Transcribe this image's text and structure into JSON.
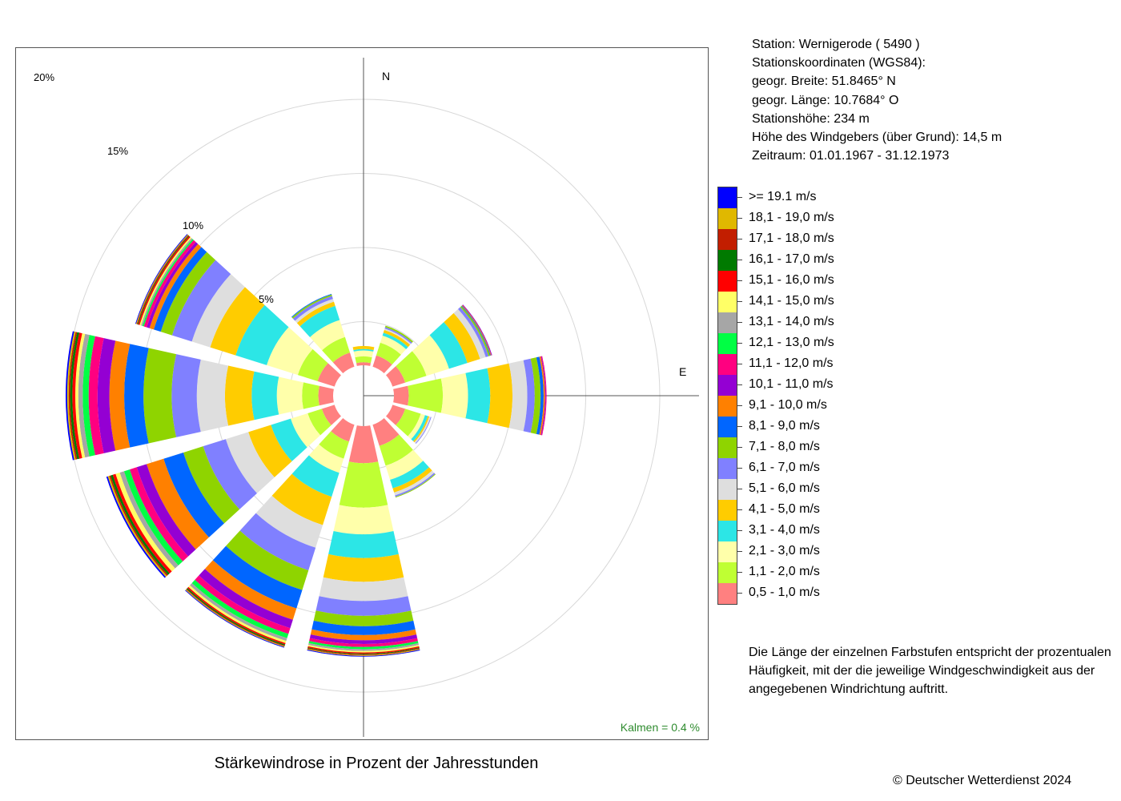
{
  "station": {
    "line1": "Station:  Wernigerode  ( 5490 )",
    "line2": "Stationskoordinaten (WGS84):",
    "line3": "geogr. Breite: 51.8465° N",
    "line4": "geogr. Länge: 10.7684° O",
    "line5": "Stationshöhe: 234 m",
    "line6": "Höhe des Windgebers (über Grund): 14,5 m",
    "line7": "Zeitraum: 01.01.1967 - 31.12.1973"
  },
  "legend": [
    {
      "label": ">= 19.1 m/s",
      "color": "#0000ff"
    },
    {
      "label": "18,1 - 19,0 m/s",
      "color": "#e0b800"
    },
    {
      "label": "17,1 - 18,0 m/s",
      "color": "#c21e00"
    },
    {
      "label": "16,1 - 17,0 m/s",
      "color": "#007a00"
    },
    {
      "label": "15,1 - 16,0 m/s",
      "color": "#ff0000"
    },
    {
      "label": "14,1 - 15,0 m/s",
      "color": "#ffff66"
    },
    {
      "label": "13,1 - 14,0 m/s",
      "color": "#a6a6a6"
    },
    {
      "label": "12,1 - 13,0 m/s",
      "color": "#00ff44"
    },
    {
      "label": "11,1 - 12,0 m/s",
      "color": "#ff0080"
    },
    {
      "label": "10,1 - 11,0 m/s",
      "color": "#9400d3"
    },
    {
      "label": "9,1 - 10,0 m/s",
      "color": "#ff8000"
    },
    {
      "label": "8,1 - 9,0 m/s",
      "color": "#0066ff"
    },
    {
      "label": "7,1 - 8,0 m/s",
      "color": "#8fd400"
    },
    {
      "label": "6,1 - 7,0 m/s",
      "color": "#8080ff"
    },
    {
      "label": "5,1 - 6,0 m/s",
      "color": "#dedede"
    },
    {
      "label": "4,1 - 5,0 m/s",
      "color": "#ffcc00"
    },
    {
      "label": "3,1 - 4,0 m/s",
      "color": "#2ce6e6"
    },
    {
      "label": "2,1 - 3,0 m/s",
      "color": "#ffffaa"
    },
    {
      "label": "1,1 - 2,0 m/s",
      "color": "#bfff33"
    },
    {
      "label": "0,5 - 1,0 m/s",
      "color": "#ff8080"
    }
  ],
  "note": "Die Länge der einzelnen Farbstufen entspricht der prozentualen Häufigkeit, mit der die jeweilige Windgeschwindigkeit aus der angegebenen Windrichtung auftritt.",
  "caption": "Stärkewindrose in Prozent der Jahresstunden",
  "copyright": "© Deutscher Wetterdienst  2024",
  "chart_data": {
    "type": "wind-rose",
    "title": "Stärkewindrose in Prozent der Jahresstunden",
    "unit": "% der Jahresstunden",
    "rings": [
      5,
      10,
      15,
      20
    ],
    "ring_labels": [
      "5%",
      "10%",
      "15%",
      "20%"
    ],
    "direction_labels": {
      "north": "N",
      "east": "E"
    },
    "calm_label": "Kalmen  =  0.4 %",
    "sectors": [
      {
        "direction_deg": 0,
        "values": [
          0.2,
          0.4,
          0.4,
          0.1,
          0.2,
          0,
          0,
          0,
          0,
          0,
          0,
          0,
          0,
          0,
          0,
          0,
          0,
          0,
          0,
          0
        ]
      },
      {
        "direction_deg": 30,
        "values": [
          0.8,
          0.9,
          0.5,
          0.2,
          0.2,
          0.1,
          0.1,
          0.1,
          0,
          0,
          0,
          0,
          0,
          0,
          0,
          0,
          0,
          0,
          0,
          0
        ]
      },
      {
        "direction_deg": 60,
        "values": [
          0.9,
          1.5,
          1.6,
          1.3,
          0.9,
          0.4,
          0.2,
          0.1,
          0.05,
          0.05,
          0.05,
          0,
          0,
          0,
          0,
          0,
          0,
          0,
          0,
          0
        ]
      },
      {
        "direction_deg": 90,
        "values": [
          1.0,
          2.3,
          1.7,
          1.5,
          1.5,
          1.0,
          0.5,
          0.4,
          0.2,
          0.1,
          0.05,
          0.05,
          0,
          0,
          0,
          0,
          0,
          0,
          0,
          0
        ]
      },
      {
        "direction_deg": 120,
        "values": [
          0.9,
          1.1,
          0.3,
          0.2,
          0.1,
          0.1,
          0.05,
          0,
          0,
          0,
          0,
          0,
          0,
          0,
          0,
          0,
          0,
          0,
          0,
          0
        ]
      },
      {
        "direction_deg": 150,
        "values": [
          1.5,
          1.4,
          1.0,
          0.6,
          0.3,
          0.2,
          0.1,
          0.05,
          0,
          0,
          0,
          0,
          0,
          0,
          0,
          0,
          0,
          0,
          0,
          0
        ]
      },
      {
        "direction_deg": 180,
        "values": [
          2.5,
          3.0,
          1.8,
          1.6,
          1.6,
          1.3,
          1.0,
          0.7,
          0.6,
          0.35,
          0.25,
          0.2,
          0.15,
          0.12,
          0.1,
          0.08,
          0.05,
          0.05,
          0.05,
          0.05
        ]
      },
      {
        "direction_deg": 210,
        "values": [
          1.2,
          1.2,
          1.0,
          1.7,
          2.0,
          1.6,
          1.6,
          1.4,
          1.3,
          0.8,
          0.6,
          0.4,
          0.3,
          0.2,
          0.15,
          0.1,
          0.08,
          0.05,
          0.05,
          0.05
        ]
      },
      {
        "direction_deg": 240,
        "values": [
          0.9,
          1.0,
          1.2,
          1.4,
          1.6,
          1.6,
          1.6,
          1.4,
          1.4,
          1.2,
          0.7,
          0.5,
          0.4,
          0.3,
          0.3,
          0.2,
          0.15,
          0.1,
          0.1,
          0.1
        ]
      },
      {
        "direction_deg": 270,
        "values": [
          1.0,
          1.1,
          1.7,
          1.7,
          1.8,
          1.9,
          1.7,
          1.9,
          1.3,
          1.0,
          0.8,
          0.6,
          0.4,
          0.3,
          0.2,
          0.2,
          0.15,
          0.1,
          0.1,
          0.1
        ]
      },
      {
        "direction_deg": 300,
        "values": [
          1.2,
          1.4,
          2.2,
          2.2,
          1.8,
          1.3,
          1.4,
          0.8,
          0.5,
          0.3,
          0.2,
          0.2,
          0.1,
          0.1,
          0.1,
          0.1,
          0.05,
          0.05,
          0.05,
          0.05
        ]
      },
      {
        "direction_deg": 330,
        "values": [
          1.0,
          1.1,
          1.2,
          1.0,
          0.3,
          0.2,
          0.2,
          0.1,
          0.05,
          0,
          0,
          0,
          0,
          0,
          0,
          0,
          0,
          0,
          0,
          0
        ]
      }
    ]
  }
}
